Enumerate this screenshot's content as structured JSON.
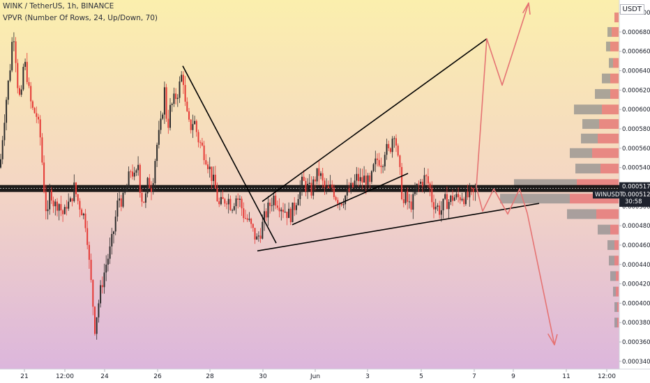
{
  "legend": {
    "symbol_line": "WINK / TetherUS, 1h, BINANCE",
    "indicator_line": "VPVR (Number Of Rows, 24, Up/Down, 70)"
  },
  "currency_label": "USDT",
  "colors": {
    "up": "#2b2b2b",
    "down": "#e53935",
    "projection": "#e57373",
    "volume_up": "#8a8a8a",
    "volume_down": "#e57373",
    "trendline": "#000000",
    "tag_dark": "#1e222d"
  },
  "chart_data": {
    "type": "candlestick",
    "ylim": [
      0.000332,
      0.000713
    ],
    "y_ticks": [
      "0.0007000",
      "0.0006800",
      "0.0006600",
      "0.0006400",
      "0.0006200",
      "0.0006000",
      "0.0005800",
      "0.0005600",
      "0.0005400",
      "0.0005200",
      "0.0005000",
      "0.0004800",
      "0.0004600",
      "0.0004400",
      "0.0004200",
      "0.0004000",
      "0.0003800",
      "0.0003600",
      "0.0003400"
    ],
    "x_ticks": [
      "21",
      "12:00",
      "24",
      "26",
      "28",
      "30",
      "Jun",
      "3",
      "5",
      "7",
      "9",
      "11",
      "12:00"
    ],
    "price_tags": [
      {
        "label": "0.0005177",
        "value": 0.0005177
      },
      {
        "label": "WINUSDT",
        "value": 0.0005124
      },
      {
        "label": "0.0005124",
        "value": 0.0005124
      },
      {
        "label": "30:58",
        "value": 0.0005124
      }
    ],
    "horizontal_level": 0.0005177,
    "price_path": [
      [
        0,
        0.00054
      ],
      [
        4,
        0.000575
      ],
      [
        8,
        0.000605
      ],
      [
        14,
        0.00064
      ],
      [
        19,
        0.000685
      ],
      [
        22,
        0.00066
      ],
      [
        26,
        0.00062
      ],
      [
        30,
        0.000605
      ],
      [
        34,
        0.00065
      ],
      [
        38,
        0.00064
      ],
      [
        42,
        0.000615
      ],
      [
        46,
        0.0006
      ],
      [
        52,
        0.000595
      ],
      [
        58,
        0.00057
      ],
      [
        64,
        0.00051
      ],
      [
        68,
        0.000485
      ],
      [
        72,
        0.00052
      ],
      [
        78,
        0.0005
      ],
      [
        84,
        0.000505
      ],
      [
        88,
        0.000495
      ],
      [
        92,
        0.00049
      ],
      [
        96,
        0.000505
      ],
      [
        100,
        0.0005
      ],
      [
        106,
        0.00052
      ],
      [
        112,
        0.000505
      ],
      [
        118,
        0.000495
      ],
      [
        124,
        0.00048
      ],
      [
        128,
        0.00044
      ],
      [
        132,
        0.00041
      ],
      [
        136,
        0.000375
      ],
      [
        140,
        0.000395
      ],
      [
        146,
        0.00042
      ],
      [
        152,
        0.00044
      ],
      [
        158,
        0.000455
      ],
      [
        162,
        0.00047
      ],
      [
        166,
        0.00049
      ],
      [
        170,
        0.00051
      ],
      [
        176,
        0.000505
      ],
      [
        182,
        0.00052
      ],
      [
        188,
        0.00054
      ],
      [
        194,
        0.000525
      ],
      [
        198,
        0.000545
      ],
      [
        202,
        0.00051
      ],
      [
        208,
        0.000505
      ],
      [
        212,
        0.000525
      ],
      [
        218,
        0.00052
      ],
      [
        224,
        0.00056
      ],
      [
        230,
        0.00058
      ],
      [
        236,
        0.00062
      ],
      [
        240,
        0.00058
      ],
      [
        244,
        0.0006
      ],
      [
        250,
        0.00061
      ],
      [
        256,
        0.00062
      ],
      [
        262,
        0.00064
      ],
      [
        266,
        0.0006
      ],
      [
        272,
        0.00058
      ],
      [
        278,
        0.00059
      ],
      [
        284,
        0.00057
      ],
      [
        290,
        0.00056
      ],
      [
        296,
        0.00055
      ],
      [
        302,
        0.000535
      ],
      [
        308,
        0.00052
      ],
      [
        314,
        0.0005
      ],
      [
        320,
        0.000505
      ],
      [
        326,
        0.00051
      ],
      [
        332,
        0.0005
      ],
      [
        338,
        0.00051
      ],
      [
        344,
        0.000505
      ],
      [
        350,
        0.00049
      ],
      [
        356,
        0.000485
      ],
      [
        362,
        0.000475
      ],
      [
        368,
        0.000465
      ],
      [
        374,
        0.000475
      ],
      [
        380,
        0.00049
      ],
      [
        386,
        0.0005
      ],
      [
        392,
        0.00051
      ],
      [
        398,
        0.000505
      ],
      [
        404,
        0.0005
      ],
      [
        410,
        0.000495
      ],
      [
        416,
        0.00049
      ],
      [
        422,
        0.0005
      ],
      [
        428,
        0.000515
      ],
      [
        434,
        0.000525
      ],
      [
        440,
        0.00052
      ],
      [
        446,
        0.000515
      ],
      [
        452,
        0.00053
      ],
      [
        458,
        0.000535
      ],
      [
        464,
        0.00052
      ],
      [
        470,
        0.000515
      ],
      [
        476,
        0.00052
      ],
      [
        482,
        0.00051
      ],
      [
        488,
        0.000505
      ],
      [
        494,
        0.00051
      ],
      [
        500,
        0.000515
      ],
      [
        506,
        0.00052
      ],
      [
        512,
        0.00053
      ],
      [
        518,
        0.000525
      ],
      [
        524,
        0.00053
      ],
      [
        530,
        0.00052
      ],
      [
        536,
        0.00054
      ],
      [
        542,
        0.00055
      ],
      [
        548,
        0.000545
      ],
      [
        552,
        0.00056
      ],
      [
        558,
        0.000555
      ],
      [
        562,
        0.00057
      ],
      [
        566,
        0.00058
      ],
      [
        570,
        0.00055
      ],
      [
        574,
        0.00053
      ],
      [
        578,
        0.0005
      ],
      [
        582,
        0.00051
      ],
      [
        586,
        0.0005
      ],
      [
        592,
        0.000505
      ],
      [
        598,
        0.00052
      ],
      [
        604,
        0.000525
      ],
      [
        610,
        0.00053
      ],
      [
        616,
        0.00052
      ],
      [
        620,
        0.000505
      ],
      [
        626,
        0.0005
      ],
      [
        632,
        0.000495
      ],
      [
        638,
        0.000505
      ],
      [
        644,
        0.000505
      ],
      [
        650,
        0.00051
      ],
      [
        656,
        0.000508
      ],
      [
        662,
        0.000512
      ],
      [
        668,
        0.000508
      ],
      [
        674,
        0.000512
      ],
      [
        680,
        0.000512
      ],
      [
        683,
        0.000515
      ]
    ],
    "annotations": {
      "trendlines": [
        {
          "from": [
            262,
            0.000645
          ],
          "to": [
            396,
            0.000462
          ]
        },
        {
          "from": [
            369,
            0.000454
          ],
          "to": [
            773,
            0.000503
          ]
        },
        {
          "from": [
            376,
            0.000505
          ],
          "to": [
            698,
            0.000673
          ]
        },
        {
          "from": [
            419,
            0.000481
          ],
          "to": [
            585,
            0.000534
          ]
        }
      ],
      "projection_paths": [
        [
          [
            683,
            0.00052
          ],
          [
            698,
            0.000673
          ],
          [
            720,
            0.000625
          ],
          [
            758,
            0.00071
          ],
          [
            750,
            0.0007
          ],
          [
            758,
            0.00071
          ],
          [
            760,
            0.000698
          ]
        ],
        [
          [
            683,
            0.00052
          ],
          [
            692,
            0.000495
          ],
          [
            708,
            0.000518
          ],
          [
            728,
            0.000492
          ],
          [
            745,
            0.000518
          ],
          [
            756,
            0.000493
          ],
          [
            795,
            0.000357
          ],
          [
            786,
            0.000368
          ],
          [
            795,
            0.000357
          ],
          [
            799,
            0.000368
          ]
        ]
      ]
    },
    "volume_profile": [
      {
        "price": 0.000695,
        "up": 0,
        "down": 3
      },
      {
        "price": 0.00068,
        "up": 3,
        "down": 5
      },
      {
        "price": 0.000665,
        "up": 3,
        "down": 6
      },
      {
        "price": 0.000648,
        "up": 3,
        "down": 4
      },
      {
        "price": 0.000632,
        "up": 6,
        "down": 6
      },
      {
        "price": 0.000616,
        "up": 11,
        "down": 6
      },
      {
        "price": 0.0006,
        "up": 20,
        "down": 12
      },
      {
        "price": 0.000585,
        "up": 12,
        "down": 14
      },
      {
        "price": 0.00057,
        "up": 12,
        "down": 15
      },
      {
        "price": 0.000555,
        "up": 16,
        "down": 19
      },
      {
        "price": 0.000539,
        "up": 18,
        "down": 13
      },
      {
        "price": 0.000523,
        "up": 45,
        "down": 30
      },
      {
        "price": 0.000508,
        "up": 50,
        "down": 35
      },
      {
        "price": 0.000492,
        "up": 21,
        "down": 16
      },
      {
        "price": 0.000476,
        "up": 9,
        "down": 6
      },
      {
        "price": 0.00046,
        "up": 5,
        "down": 3
      },
      {
        "price": 0.000444,
        "up": 4,
        "down": 3
      },
      {
        "price": 0.000428,
        "up": 4,
        "down": 2
      },
      {
        "price": 0.000412,
        "up": 2,
        "down": 2
      },
      {
        "price": 0.000396,
        "up": 2,
        "down": 1
      },
      {
        "price": 0.00038,
        "up": 2,
        "down": 1
      }
    ]
  }
}
